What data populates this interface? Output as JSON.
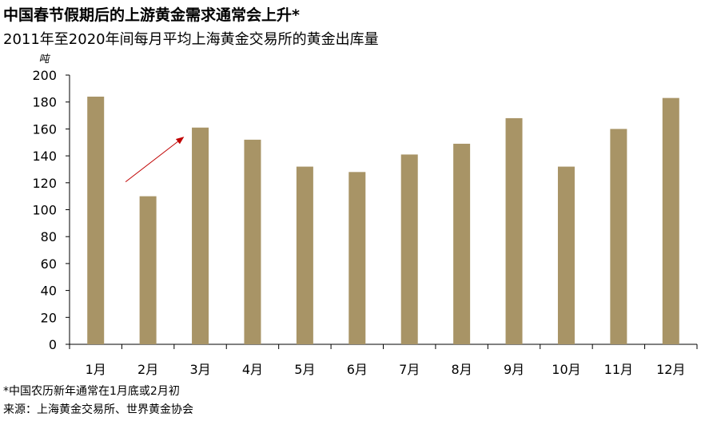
{
  "title": "中国春节假期后的上游黄金需求通常会上升*",
  "subtitle": "2011年至2020年间每月平均上海黄金交易所的黄金出库量",
  "footnote": "*中国农历新年通常在1月底或2月初",
  "source": "来源：上海黄金交易所、世界黄金协会",
  "colors": {
    "bar": "#a89466",
    "arrow": "#c00000",
    "axis": "#000000"
  },
  "chart_data": {
    "type": "bar",
    "categories": [
      "1月",
      "2月",
      "3月",
      "4月",
      "5月",
      "6月",
      "7月",
      "8月",
      "9月",
      "10月",
      "11月",
      "12月"
    ],
    "values": [
      184,
      110,
      161,
      152,
      132,
      128,
      141,
      149,
      168,
      132,
      160,
      183
    ],
    "ylabel": "吨",
    "ylim": [
      0,
      200
    ],
    "yticks": [
      0,
      20,
      40,
      60,
      80,
      100,
      120,
      140,
      160,
      180,
      200
    ],
    "grid": false,
    "annotation": {
      "type": "arrow",
      "from": "2月",
      "to": "3月"
    }
  }
}
